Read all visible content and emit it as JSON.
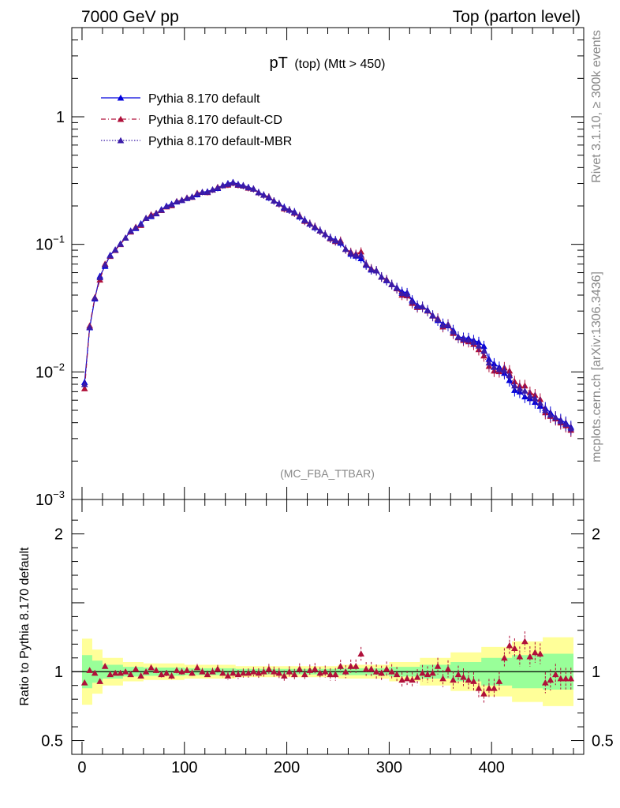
{
  "header": {
    "left": "7000 GeV pp",
    "right": "Top (parton level)"
  },
  "side_labels": {
    "rivet": "Rivet 3.1.10, ≥ 300k events",
    "mcplots": "mcplots.cern.ch [arXiv:1306.3436]"
  },
  "analysis_label": "(MC_FBA_TTBAR)",
  "chart_data": [
    {
      "type": "line",
      "panel": "main",
      "title_main": "pT",
      "title_sub": "(top) (Mtt > 450)",
      "yscale": "log",
      "xlim": [
        -10,
        490
      ],
      "ylim": [
        0.001,
        5
      ],
      "y_ticks": [
        {
          "value": 1,
          "label": "1"
        },
        {
          "value": 0.1,
          "base": "10",
          "exp": "−1"
        },
        {
          "value": 0.01,
          "base": "10",
          "exp": "−2"
        },
        {
          "value": 0.001,
          "base": "10",
          "exp": "−3"
        }
      ],
      "legend_position": "top-left",
      "x": [
        2.5,
        7.5,
        12.5,
        17.5,
        22.5,
        27.5,
        32.5,
        37.5,
        42.5,
        47.5,
        52.5,
        57.5,
        62.5,
        67.5,
        72.5,
        77.5,
        82.5,
        87.5,
        92.5,
        97.5,
        102.5,
        107.5,
        112.5,
        117.5,
        122.5,
        127.5,
        132.5,
        137.5,
        142.5,
        147.5,
        152.5,
        157.5,
        162.5,
        167.5,
        172.5,
        177.5,
        182.5,
        187.5,
        192.5,
        197.5,
        202.5,
        207.5,
        212.5,
        217.5,
        222.5,
        227.5,
        232.5,
        237.5,
        242.5,
        247.5,
        252.5,
        257.5,
        262.5,
        267.5,
        272.5,
        277.5,
        282.5,
        287.5,
        292.5,
        297.5,
        302.5,
        307.5,
        312.5,
        317.5,
        322.5,
        327.5,
        332.5,
        337.5,
        342.5,
        347.5,
        352.5,
        357.5,
        362.5,
        367.5,
        372.5,
        377.5,
        382.5,
        387.5,
        392.5,
        397.5,
        402.5,
        407.5,
        412.5,
        417.5,
        422.5,
        427.5,
        432.5,
        437.5,
        442.5,
        447.5,
        452.5,
        457.5,
        462.5,
        467.5,
        472.5,
        477.5
      ],
      "series": [
        {
          "name": "Pythia 8.170 default",
          "color": "#0000dd",
          "style": "solid",
          "values": [
            0.0083,
            0.0223,
            0.0375,
            0.0565,
            0.0675,
            0.0824,
            0.0908,
            0.1013,
            0.1125,
            0.1278,
            0.1337,
            0.1456,
            0.1602,
            0.1659,
            0.1743,
            0.1877,
            0.2001,
            0.2071,
            0.2158,
            0.2216,
            0.2294,
            0.236,
            0.2456,
            0.2567,
            0.2595,
            0.2683,
            0.2752,
            0.2904,
            0.3007,
            0.3068,
            0.296,
            0.29,
            0.2807,
            0.2727,
            0.2561,
            0.2443,
            0.2325,
            0.2193,
            0.2091,
            0.1957,
            0.1859,
            0.1802,
            0.1647,
            0.1557,
            0.1445,
            0.1355,
            0.1285,
            0.1199,
            0.1129,
            0.1083,
            0.1025,
            0.0919,
            0.084,
            0.0812,
            0.0775,
            0.0688,
            0.0632,
            0.0622,
            0.0558,
            0.0521,
            0.0486,
            0.0459,
            0.0427,
            0.0418,
            0.0366,
            0.0333,
            0.0326,
            0.0306,
            0.0278,
            0.0254,
            0.0239,
            0.0231,
            0.0213,
            0.0189,
            0.0185,
            0.0184,
            0.0177,
            0.0171,
            0.0159,
            0.0126,
            0.0116,
            0.0109,
            0.0098,
            0.0086,
            0.0072,
            0.007,
            0.0064,
            0.0062,
            0.0058,
            0.0054,
            0.0052,
            0.0048,
            0.0044,
            0.0042,
            0.004,
            0.0037
          ]
        },
        {
          "name": "Pythia 8.170 default-CD",
          "color": "#b0103a",
          "style": "dashdot",
          "values": [
            0.0074,
            0.023,
            0.0383,
            0.0527,
            0.0703,
            0.0808,
            0.0898,
            0.1,
            0.1122,
            0.1254,
            0.1367,
            0.1412,
            0.1606,
            0.1713,
            0.176,
            0.1848,
            0.1972,
            0.2015,
            0.2177,
            0.2227,
            0.2321,
            0.2346,
            0.2524,
            0.2562,
            0.2555,
            0.2671,
            0.2808,
            0.2889,
            0.2925,
            0.3024,
            0.2913,
            0.2873,
            0.2769,
            0.2721,
            0.2544,
            0.2433,
            0.2363,
            0.2191,
            0.2078,
            0.1904,
            0.1864,
            0.1761,
            0.1682,
            0.1521,
            0.1459,
            0.138,
            0.1275,
            0.1204,
            0.1108,
            0.1057,
            0.1069,
            0.0916,
            0.0873,
            0.0841,
            0.0876,
            0.0702,
            0.0647,
            0.0623,
            0.0555,
            0.0531,
            0.0486,
            0.045,
            0.0401,
            0.0397,
            0.0346,
            0.0321,
            0.0323,
            0.0301,
            0.0275,
            0.0263,
            0.0226,
            0.0236,
            0.0201,
            0.0186,
            0.0177,
            0.0173,
            0.0165,
            0.015,
            0.0134,
            0.0111,
            0.0102,
            0.0101,
            0.0108,
            0.0102,
            0.0084,
            0.0078,
            0.0078,
            0.0069,
            0.0066,
            0.0061,
            0.0048,
            0.0045,
            0.0043,
            0.004,
            0.0038,
            0.0035
          ]
        },
        {
          "name": "Pythia 8.170 default-MBR",
          "color": "#3a1ba8",
          "style": "dotted",
          "values": [
            0.008,
            0.0225,
            0.038,
            0.055,
            0.069,
            0.0815,
            0.0905,
            0.1005,
            0.1122,
            0.127,
            0.135,
            0.1435,
            0.1605,
            0.168,
            0.175,
            0.186,
            0.1985,
            0.205,
            0.2165,
            0.222,
            0.2305,
            0.2355,
            0.249,
            0.2565,
            0.2575,
            0.268,
            0.278,
            0.2895,
            0.2965,
            0.3045,
            0.2935,
            0.2885,
            0.279,
            0.2725,
            0.255,
            0.2438,
            0.2345,
            0.2192,
            0.2085,
            0.193,
            0.1862,
            0.178,
            0.1665,
            0.154,
            0.145,
            0.1368,
            0.128,
            0.1202,
            0.1118,
            0.107,
            0.1047,
            0.0918,
            0.0857,
            0.0827,
            0.0826,
            0.0695,
            0.064,
            0.0622,
            0.0556,
            0.0526,
            0.0486,
            0.0454,
            0.0414,
            0.0407,
            0.0356,
            0.0327,
            0.0325,
            0.0303,
            0.0276,
            0.0259,
            0.0232,
            0.0234,
            0.0207,
            0.0188,
            0.0181,
            0.0178,
            0.0171,
            0.016,
            0.0146,
            0.0118,
            0.0109,
            0.0105,
            0.0103,
            0.0094,
            0.0078,
            0.0074,
            0.0071,
            0.0065,
            0.0062,
            0.0057,
            0.005,
            0.0046,
            0.0044,
            0.0041,
            0.0039,
            0.0036
          ]
        }
      ]
    },
    {
      "type": "scatter",
      "panel": "ratio",
      "ylabel": "Ratio to Pythia 8.170 default",
      "xlim": [
        -10,
        490
      ],
      "ylim": [
        0.4,
        2.25
      ],
      "y_ticks": [
        {
          "value": 0.5,
          "label": "0.5"
        },
        {
          "value": 1,
          "label": "1"
        },
        {
          "value": 2,
          "label": "2"
        }
      ],
      "x_ticks": [
        {
          "value": 0,
          "label": "0"
        },
        {
          "value": 100,
          "label": "100"
        },
        {
          "value": 200,
          "label": "200"
        },
        {
          "value": 300,
          "label": "300"
        },
        {
          "value": 400,
          "label": "400"
        }
      ],
      "reference_line": 1,
      "band_inner_color": "#99ff99",
      "band_outer_color": "#ffff99",
      "band_x_edges": [
        0,
        10,
        20,
        40,
        60,
        100,
        150,
        200,
        250,
        300,
        330,
        360,
        390,
        420,
        450,
        480
      ],
      "band_inner_halfwidth": [
        0.12,
        0.08,
        0.05,
        0.035,
        0.03,
        0.025,
        0.02,
        0.02,
        0.025,
        0.035,
        0.05,
        0.07,
        0.1,
        0.12,
        0.13
      ],
      "band_outer_halfwidth": [
        0.24,
        0.16,
        0.1,
        0.07,
        0.06,
        0.05,
        0.04,
        0.04,
        0.05,
        0.07,
        0.1,
        0.14,
        0.18,
        0.22,
        0.25
      ],
      "ratio_points": [
        {
          "x": 2.5,
          "y": 0.92
        },
        {
          "x": 7.5,
          "y": 1.01
        },
        {
          "x": 12.5,
          "y": 0.99
        },
        {
          "x": 17.5,
          "y": 0.93
        },
        {
          "x": 22.5,
          "y": 1.04
        },
        {
          "x": 27.5,
          "y": 0.98
        },
        {
          "x": 32.5,
          "y": 0.99
        },
        {
          "x": 37.5,
          "y": 0.99
        },
        {
          "x": 42.5,
          "y": 1.0
        },
        {
          "x": 47.5,
          "y": 0.98
        },
        {
          "x": 52.5,
          "y": 1.02
        },
        {
          "x": 57.5,
          "y": 0.97
        },
        {
          "x": 62.5,
          "y": 1.0
        },
        {
          "x": 67.5,
          "y": 1.03
        },
        {
          "x": 72.5,
          "y": 1.01
        },
        {
          "x": 77.5,
          "y": 0.98
        },
        {
          "x": 82.5,
          "y": 0.99
        },
        {
          "x": 87.5,
          "y": 0.97
        },
        {
          "x": 92.5,
          "y": 1.01
        },
        {
          "x": 97.5,
          "y": 1.0
        },
        {
          "x": 102.5,
          "y": 1.01
        },
        {
          "x": 107.5,
          "y": 0.99
        },
        {
          "x": 112.5,
          "y": 1.03
        },
        {
          "x": 117.5,
          "y": 1.0
        },
        {
          "x": 122.5,
          "y": 0.98
        },
        {
          "x": 127.5,
          "y": 1.0
        },
        {
          "x": 132.5,
          "y": 1.02
        },
        {
          "x": 137.5,
          "y": 0.99
        },
        {
          "x": 142.5,
          "y": 0.97
        },
        {
          "x": 147.5,
          "y": 0.99
        },
        {
          "x": 152.5,
          "y": 0.98
        },
        {
          "x": 157.5,
          "y": 0.99
        },
        {
          "x": 162.5,
          "y": 0.99
        },
        {
          "x": 167.5,
          "y": 1.0
        },
        {
          "x": 172.5,
          "y": 0.99
        },
        {
          "x": 177.5,
          "y": 1.0
        },
        {
          "x": 182.5,
          "y": 1.02
        },
        {
          "x": 187.5,
          "y": 1.0
        },
        {
          "x": 192.5,
          "y": 0.99
        },
        {
          "x": 197.5,
          "y": 0.97
        },
        {
          "x": 202.5,
          "y": 1.0
        },
        {
          "x": 207.5,
          "y": 0.98
        },
        {
          "x": 212.5,
          "y": 1.02
        },
        {
          "x": 217.5,
          "y": 0.98
        },
        {
          "x": 222.5,
          "y": 1.01
        },
        {
          "x": 227.5,
          "y": 1.02
        },
        {
          "x": 232.5,
          "y": 0.99
        },
        {
          "x": 237.5,
          "y": 1.0
        },
        {
          "x": 242.5,
          "y": 0.98
        },
        {
          "x": 247.5,
          "y": 0.98
        },
        {
          "x": 252.5,
          "y": 1.04
        },
        {
          "x": 257.5,
          "y": 1.0
        },
        {
          "x": 262.5,
          "y": 1.04
        },
        {
          "x": 267.5,
          "y": 1.04
        },
        {
          "x": 272.5,
          "y": 1.13
        },
        {
          "x": 277.5,
          "y": 1.02
        },
        {
          "x": 282.5,
          "y": 1.02
        },
        {
          "x": 287.5,
          "y": 1.0
        },
        {
          "x": 292.5,
          "y": 0.99
        },
        {
          "x": 297.5,
          "y": 1.02
        },
        {
          "x": 302.5,
          "y": 1.0
        },
        {
          "x": 307.5,
          "y": 0.98
        },
        {
          "x": 312.5,
          "y": 0.94
        },
        {
          "x": 317.5,
          "y": 0.95
        },
        {
          "x": 322.5,
          "y": 0.94
        },
        {
          "x": 327.5,
          "y": 0.96
        },
        {
          "x": 332.5,
          "y": 0.99
        },
        {
          "x": 337.5,
          "y": 0.98
        },
        {
          "x": 342.5,
          "y": 0.99
        },
        {
          "x": 347.5,
          "y": 1.04
        },
        {
          "x": 352.5,
          "y": 0.95
        },
        {
          "x": 357.5,
          "y": 1.02
        },
        {
          "x": 362.5,
          "y": 0.94
        },
        {
          "x": 367.5,
          "y": 0.98
        },
        {
          "x": 372.5,
          "y": 0.96
        },
        {
          "x": 377.5,
          "y": 0.94
        },
        {
          "x": 382.5,
          "y": 0.93
        },
        {
          "x": 387.5,
          "y": 0.88
        },
        {
          "x": 392.5,
          "y": 0.84
        },
        {
          "x": 397.5,
          "y": 0.88
        },
        {
          "x": 402.5,
          "y": 0.88
        },
        {
          "x": 407.5,
          "y": 0.93
        },
        {
          "x": 412.5,
          "y": 1.1
        },
        {
          "x": 417.5,
          "y": 1.19
        },
        {
          "x": 422.5,
          "y": 1.17
        },
        {
          "x": 427.5,
          "y": 1.11
        },
        {
          "x": 432.5,
          "y": 1.22
        },
        {
          "x": 437.5,
          "y": 1.11
        },
        {
          "x": 442.5,
          "y": 1.14
        },
        {
          "x": 447.5,
          "y": 1.13
        },
        {
          "x": 452.5,
          "y": 0.92
        },
        {
          "x": 457.5,
          "y": 0.94
        },
        {
          "x": 462.5,
          "y": 0.98
        },
        {
          "x": 467.5,
          "y": 0.95
        },
        {
          "x": 472.5,
          "y": 0.95
        },
        {
          "x": 477.5,
          "y": 0.95
        }
      ]
    }
  ]
}
